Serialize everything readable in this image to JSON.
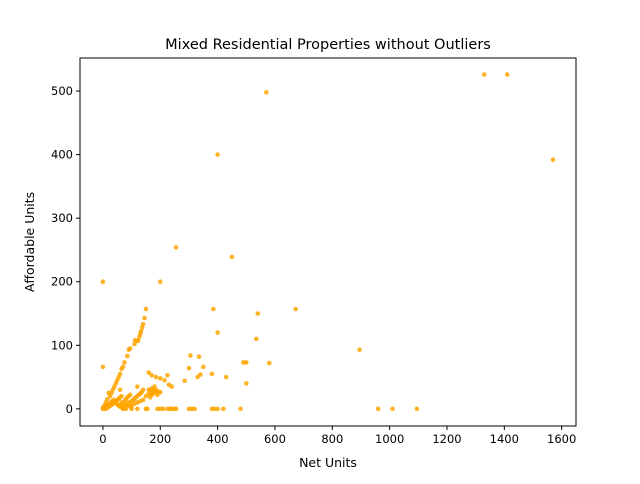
{
  "chart_data": {
    "type": "scatter",
    "title": "Mixed Residential Properties without Outliers",
    "xlabel": "Net Units",
    "ylabel": "Affordable Units",
    "xlim": [
      -80,
      1650
    ],
    "ylim": [
      -27,
      552
    ],
    "xticks": [
      0,
      200,
      400,
      600,
      800,
      1000,
      1200,
      1400,
      1600
    ],
    "yticks": [
      0,
      100,
      200,
      300,
      400,
      500
    ],
    "grid": false,
    "legend": "none",
    "point_color": "#FFA500",
    "points": [
      [
        1330,
        526
      ],
      [
        1410,
        526
      ],
      [
        570,
        498
      ],
      [
        1570,
        392
      ],
      [
        400,
        400
      ],
      [
        255,
        254
      ],
      [
        450,
        239
      ],
      [
        0,
        200
      ],
      [
        200,
        200
      ],
      [
        540,
        150
      ],
      [
        385,
        157
      ],
      [
        672,
        157
      ],
      [
        400,
        120
      ],
      [
        535,
        110
      ],
      [
        895,
        93
      ],
      [
        305,
        84
      ],
      [
        335,
        82
      ],
      [
        490,
        73
      ],
      [
        500,
        73
      ],
      [
        580,
        72
      ],
      [
        300,
        64
      ],
      [
        350,
        66
      ],
      [
        0,
        66
      ],
      [
        380,
        55
      ],
      [
        430,
        50
      ],
      [
        330,
        50
      ],
      [
        340,
        54
      ],
      [
        225,
        53
      ],
      [
        215,
        45
      ],
      [
        500,
        40
      ],
      [
        285,
        44
      ],
      [
        170,
        53
      ],
      [
        185,
        50
      ],
      [
        200,
        48
      ],
      [
        160,
        57
      ],
      [
        150,
        157
      ],
      [
        145,
        143
      ],
      [
        140,
        133
      ],
      [
        137,
        128
      ],
      [
        133,
        122
      ],
      [
        130,
        118
      ],
      [
        127,
        113
      ],
      [
        123,
        107
      ],
      [
        118,
        107
      ],
      [
        112,
        108
      ],
      [
        110,
        102
      ],
      [
        95,
        95
      ],
      [
        90,
        93
      ],
      [
        85,
        83
      ],
      [
        75,
        73
      ],
      [
        70,
        66
      ],
      [
        65,
        63
      ],
      [
        60,
        55
      ],
      [
        55,
        50
      ],
      [
        50,
        45
      ],
      [
        45,
        40
      ],
      [
        40,
        35
      ],
      [
        35,
        30
      ],
      [
        30,
        25
      ],
      [
        25,
        20
      ],
      [
        20,
        25
      ],
      [
        15,
        15
      ],
      [
        10,
        10
      ],
      [
        5,
        5
      ],
      [
        0,
        0
      ],
      [
        5,
        0
      ],
      [
        10,
        0
      ],
      [
        15,
        2
      ],
      [
        20,
        3
      ],
      [
        25,
        5
      ],
      [
        30,
        6
      ],
      [
        35,
        8
      ],
      [
        40,
        10
      ],
      [
        45,
        12
      ],
      [
        50,
        14
      ],
      [
        55,
        16
      ],
      [
        60,
        18
      ],
      [
        65,
        20
      ],
      [
        70,
        8
      ],
      [
        75,
        12
      ],
      [
        80,
        15
      ],
      [
        85,
        18
      ],
      [
        90,
        20
      ],
      [
        95,
        22
      ],
      [
        100,
        12
      ],
      [
        105,
        14
      ],
      [
        110,
        16
      ],
      [
        115,
        18
      ],
      [
        120,
        20
      ],
      [
        125,
        22
      ],
      [
        130,
        24
      ],
      [
        135,
        26
      ],
      [
        140,
        30
      ],
      [
        60,
        30
      ],
      [
        65,
        10
      ],
      [
        90,
        10
      ],
      [
        100,
        5
      ],
      [
        110,
        8
      ],
      [
        120,
        10
      ],
      [
        130,
        12
      ],
      [
        140,
        14
      ],
      [
        150,
        20
      ],
      [
        160,
        24
      ],
      [
        170,
        25
      ],
      [
        175,
        30
      ],
      [
        180,
        35
      ],
      [
        185,
        28
      ],
      [
        190,
        22
      ],
      [
        165,
        18
      ],
      [
        170,
        22
      ],
      [
        175,
        26
      ],
      [
        180,
        28
      ],
      [
        185,
        30
      ],
      [
        195,
        27
      ],
      [
        200,
        26
      ],
      [
        120,
        35
      ],
      [
        60,
        5
      ],
      [
        70,
        0
      ],
      [
        80,
        0
      ],
      [
        100,
        0
      ],
      [
        120,
        0
      ],
      [
        150,
        0
      ],
      [
        155,
        0
      ],
      [
        190,
        0
      ],
      [
        200,
        0
      ],
      [
        210,
        0
      ],
      [
        225,
        0
      ],
      [
        235,
        0
      ],
      [
        240,
        0
      ],
      [
        250,
        0
      ],
      [
        255,
        0
      ],
      [
        300,
        0
      ],
      [
        310,
        0
      ],
      [
        320,
        0
      ],
      [
        380,
        0
      ],
      [
        390,
        0
      ],
      [
        400,
        0
      ],
      [
        420,
        0
      ],
      [
        480,
        0
      ],
      [
        960,
        0
      ],
      [
        1010,
        0
      ],
      [
        1095,
        0
      ],
      [
        0,
        2
      ],
      [
        3,
        1
      ],
      [
        8,
        3
      ],
      [
        12,
        4
      ],
      [
        18,
        6
      ],
      [
        22,
        8
      ],
      [
        28,
        10
      ],
      [
        32,
        12
      ],
      [
        38,
        14
      ],
      [
        42,
        10
      ],
      [
        48,
        8
      ],
      [
        52,
        6
      ],
      [
        58,
        4
      ],
      [
        62,
        3
      ],
      [
        68,
        2
      ],
      [
        72,
        1
      ],
      [
        78,
        4
      ],
      [
        82,
        6
      ],
      [
        88,
        8
      ],
      [
        92,
        4
      ],
      [
        98,
        3
      ],
      [
        240,
        35
      ],
      [
        230,
        38
      ],
      [
        160,
        30
      ],
      [
        165,
        28
      ],
      [
        170,
        32
      ],
      [
        175,
        24
      ],
      [
        180,
        26
      ]
    ]
  }
}
